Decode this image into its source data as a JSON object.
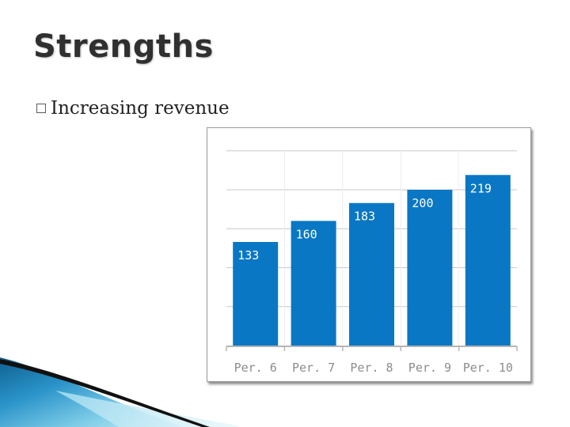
{
  "slide": {
    "title": "Strengths",
    "bullets": [
      {
        "text": "Increasing revenue"
      }
    ]
  },
  "chart_data": {
    "type": "bar",
    "title": "",
    "xlabel": "",
    "ylabel": "",
    "categories": [
      "Per. 6",
      "Per. 7",
      "Per. 8",
      "Per. 9",
      "Per. 10"
    ],
    "values": [
      133,
      160,
      183,
      200,
      219
    ],
    "ylim": [
      0,
      250
    ],
    "grid": true,
    "data_labels": true,
    "bar_color": "#0a77c4"
  },
  "theme": {
    "swoosh_dark": "#1a1a1a",
    "swoosh_blue": "#1b7fb8",
    "swoosh_light": "#8fd3ea"
  }
}
